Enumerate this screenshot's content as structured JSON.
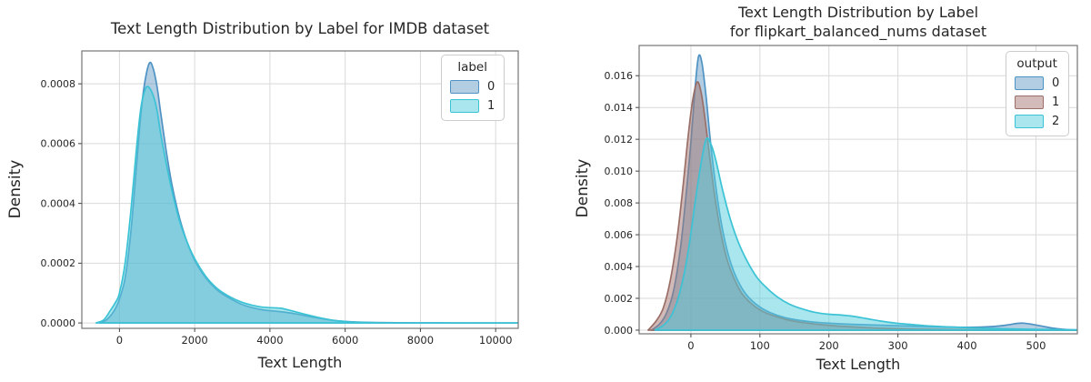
{
  "figure": {
    "background": "#ffffff",
    "grid_color": "#d9d9d9",
    "spine_color": "#767676",
    "text_color": "#262626"
  },
  "chart_data": [
    {
      "type": "area",
      "kind": "kde",
      "title": "Text Length Distribution by Label for IMDB dataset",
      "xlabel": "Text Length",
      "ylabel": "Density",
      "xlim": [
        -1000,
        10600
      ],
      "ylim": [
        -1.8e-05,
        0.00091
      ],
      "xticks": [
        0,
        2000,
        4000,
        6000,
        8000,
        10000
      ],
      "xtick_labels": [
        "0",
        "2000",
        "4000",
        "6000",
        "8000",
        "10000"
      ],
      "yticks": [
        0,
        0.0002,
        0.0004,
        0.0006,
        0.0008
      ],
      "ytick_labels": [
        "0.0000",
        "0.0002",
        "0.0004",
        "0.0006",
        "0.0008"
      ],
      "grid": true,
      "legend": {
        "title": "label",
        "position": "upper-right",
        "entries": [
          {
            "label": "0",
            "fill": "#b3cee2",
            "stroke": "#4f93c4"
          },
          {
            "label": "1",
            "fill": "#aae6ee",
            "stroke": "#3bc3d5"
          }
        ]
      },
      "series": [
        {
          "name": "0",
          "stroke": "#4f93c4",
          "fill": "rgba(86,145,190,0.45)",
          "points": [
            [
              -520,
              0
            ],
            [
              -350,
              1e-05
            ],
            [
              -200,
              3e-05
            ],
            [
              -100,
              5e-05
            ],
            [
              0,
              8e-05
            ],
            [
              150,
              0.00015
            ],
            [
              300,
              0.0003
            ],
            [
              450,
              0.00052
            ],
            [
              570,
              0.0007
            ],
            [
              680,
              0.00081
            ],
            [
              800,
              0.00087
            ],
            [
              900,
              0.00085
            ],
            [
              1000,
              0.00079
            ],
            [
              1100,
              0.0007
            ],
            [
              1250,
              0.00057
            ],
            [
              1400,
              0.00046
            ],
            [
              1600,
              0.00035
            ],
            [
              1800,
              0.00027
            ],
            [
              2000,
              0.00021
            ],
            [
              2300,
              0.00015
            ],
            [
              2600,
              0.00011
            ],
            [
              2900,
              8.5e-05
            ],
            [
              3200,
              6.5e-05
            ],
            [
              3500,
              5.2e-05
            ],
            [
              3800,
              4.4e-05
            ],
            [
              4100,
              4e-05
            ],
            [
              4400,
              3.6e-05
            ],
            [
              4700,
              3e-05
            ],
            [
              5000,
              2.3e-05
            ],
            [
              5300,
              1.6e-05
            ],
            [
              5600,
              1e-05
            ],
            [
              5900,
              6e-06
            ],
            [
              6300,
              3e-06
            ],
            [
              6800,
              1.5e-06
            ],
            [
              7400,
              8e-07
            ],
            [
              8200,
              3e-07
            ],
            [
              9000,
              1e-07
            ],
            [
              10600,
              0
            ]
          ]
        },
        {
          "name": "1",
          "stroke": "#3bc3d5",
          "fill": "rgba(85,205,220,0.5)",
          "points": [
            [
              -620,
              0
            ],
            [
              -420,
              1e-05
            ],
            [
              -250,
              4e-05
            ],
            [
              -100,
              7e-05
            ],
            [
              0,
              0.0001
            ],
            [
              150,
              0.0002
            ],
            [
              300,
              0.00037
            ],
            [
              450,
              0.00058
            ],
            [
              570,
              0.00072
            ],
            [
              680,
              0.00078
            ],
            [
              770,
              0.00079
            ],
            [
              900,
              0.00076
            ],
            [
              1000,
              0.00071
            ],
            [
              1100,
              0.00063
            ],
            [
              1250,
              0.00053
            ],
            [
              1400,
              0.00044
            ],
            [
              1600,
              0.00034
            ],
            [
              1800,
              0.00027
            ],
            [
              2000,
              0.000215
            ],
            [
              2300,
              0.000155
            ],
            [
              2600,
              0.000115
            ],
            [
              2900,
              9e-05
            ],
            [
              3200,
              7.2e-05
            ],
            [
              3500,
              6e-05
            ],
            [
              3800,
              5.3e-05
            ],
            [
              4050,
              5.1e-05
            ],
            [
              4300,
              4.9e-05
            ],
            [
              4600,
              4e-05
            ],
            [
              4900,
              3e-05
            ],
            [
              5200,
              2.1e-05
            ],
            [
              5500,
              1.3e-05
            ],
            [
              5800,
              7e-06
            ],
            [
              6200,
              3e-06
            ],
            [
              6700,
              1e-06
            ],
            [
              7400,
              0
            ],
            [
              10600,
              0
            ]
          ]
        }
      ]
    },
    {
      "type": "area",
      "kind": "kde",
      "title": "Text Length Distribution by Label\nfor flipkart_balanced_nums dataset",
      "xlabel": "Text Length",
      "ylabel": "Density",
      "xlim": [
        -75,
        560
      ],
      "ylim": [
        -0.00023,
        0.0179
      ],
      "xticks": [
        0,
        100,
        200,
        300,
        400,
        500
      ],
      "xtick_labels": [
        "0",
        "100",
        "200",
        "300",
        "400",
        "500"
      ],
      "yticks": [
        0,
        0.002,
        0.004,
        0.006,
        0.008,
        0.01,
        0.012,
        0.014,
        0.016
      ],
      "ytick_labels": [
        "0.000",
        "0.002",
        "0.004",
        "0.006",
        "0.008",
        "0.010",
        "0.012",
        "0.014",
        "0.016"
      ],
      "grid": true,
      "legend": {
        "title": "output",
        "position": "upper-right",
        "entries": [
          {
            "label": "0",
            "fill": "#b3cee2",
            "stroke": "#4f93c4"
          },
          {
            "label": "1",
            "fill": "#d2bbb8",
            "stroke": "#9a6f68"
          },
          {
            "label": "2",
            "fill": "#aae6ee",
            "stroke": "#3bc3d5"
          }
        ]
      },
      "series": [
        {
          "name": "0",
          "stroke": "#4f93c4",
          "fill": "rgba(86,145,190,0.45)",
          "points": [
            [
              -57,
              0
            ],
            [
              -45,
              0.0004
            ],
            [
              -35,
              0.0011
            ],
            [
              -25,
              0.0025
            ],
            [
              -15,
              0.0052
            ],
            [
              -7,
              0.0085
            ],
            [
              0,
              0.0118
            ],
            [
              6,
              0.0152
            ],
            [
              11,
              0.0172
            ],
            [
              16,
              0.0168
            ],
            [
              22,
              0.0147
            ],
            [
              28,
              0.012
            ],
            [
              35,
              0.0094
            ],
            [
              43,
              0.007
            ],
            [
              52,
              0.0051
            ],
            [
              62,
              0.0037
            ],
            [
              73,
              0.0027
            ],
            [
              85,
              0.002
            ],
            [
              100,
              0.00145
            ],
            [
              115,
              0.0011
            ],
            [
              135,
              0.0008
            ],
            [
              160,
              0.0006
            ],
            [
              185,
              0.00048
            ],
            [
              215,
              0.0004
            ],
            [
              250,
              0.00034
            ],
            [
              290,
              0.00029
            ],
            [
              330,
              0.00024
            ],
            [
              370,
              0.0002
            ],
            [
              405,
              0.00018
            ],
            [
              435,
              0.00022
            ],
            [
              458,
              0.00032
            ],
            [
              472,
              0.00042
            ],
            [
              482,
              0.00044
            ],
            [
              495,
              0.00036
            ],
            [
              510,
              0.00024
            ],
            [
              525,
              0.00012
            ],
            [
              540,
              5e-05
            ],
            [
              552,
              2e-05
            ],
            [
              560,
              1e-05
            ]
          ]
        },
        {
          "name": "1",
          "stroke": "#9a6f68",
          "fill": "rgba(164,118,112,0.5)",
          "points": [
            [
              -62,
              0
            ],
            [
              -50,
              0.0006
            ],
            [
              -40,
              0.0014
            ],
            [
              -30,
              0.0031
            ],
            [
              -20,
              0.0058
            ],
            [
              -12,
              0.0088
            ],
            [
              -5,
              0.0118
            ],
            [
              2,
              0.0143
            ],
            [
              9,
              0.0156
            ],
            [
              15,
              0.0149
            ],
            [
              21,
              0.0131
            ],
            [
              28,
              0.0106
            ],
            [
              35,
              0.0083
            ],
            [
              43,
              0.0062
            ],
            [
              52,
              0.0045
            ],
            [
              62,
              0.0033
            ],
            [
              74,
              0.0023
            ],
            [
              88,
              0.00165
            ],
            [
              103,
              0.0012
            ],
            [
              120,
              0.0009
            ],
            [
              140,
              0.00065
            ],
            [
              162,
              0.00048
            ],
            [
              190,
              0.00034
            ],
            [
              220,
              0.00024
            ],
            [
              255,
              0.00016
            ],
            [
              290,
              0.0001
            ],
            [
              330,
              6e-05
            ],
            [
              375,
              3.5e-05
            ],
            [
              420,
              2e-05
            ],
            [
              470,
              1e-05
            ],
            [
              520,
              4e-06
            ],
            [
              560,
              1e-06
            ]
          ]
        },
        {
          "name": "2",
          "stroke": "#3bc3d5",
          "fill": "rgba(85,205,220,0.5)",
          "points": [
            [
              -52,
              0
            ],
            [
              -40,
              0.0003
            ],
            [
              -30,
              0.0008
            ],
            [
              -20,
              0.0018
            ],
            [
              -10,
              0.0035
            ],
            [
              -2,
              0.0055
            ],
            [
              6,
              0.008
            ],
            [
              14,
              0.0103
            ],
            [
              22,
              0.012
            ],
            [
              29,
              0.0117
            ],
            [
              36,
              0.0107
            ],
            [
              46,
              0.0088
            ],
            [
              57,
              0.007
            ],
            [
              69,
              0.0055
            ],
            [
              82,
              0.0043
            ],
            [
              96,
              0.0033
            ],
            [
              110,
              0.00265
            ],
            [
              125,
              0.0021
            ],
            [
              142,
              0.00165
            ],
            [
              160,
              0.00135
            ],
            [
              180,
              0.00112
            ],
            [
              200,
              0.001
            ],
            [
              218,
              0.00095
            ],
            [
              235,
              0.00087
            ],
            [
              255,
              0.00072
            ],
            [
              275,
              0.00057
            ],
            [
              295,
              0.00045
            ],
            [
              315,
              0.00037
            ],
            [
              340,
              0.00028
            ],
            [
              370,
              0.00021
            ],
            [
              400,
              0.000155
            ],
            [
              430,
              0.00011
            ],
            [
              460,
              8e-05
            ],
            [
              490,
              5.5e-05
            ],
            [
              515,
              4e-05
            ],
            [
              540,
              2.5e-05
            ],
            [
              560,
              2e-05
            ]
          ]
        }
      ]
    }
  ]
}
